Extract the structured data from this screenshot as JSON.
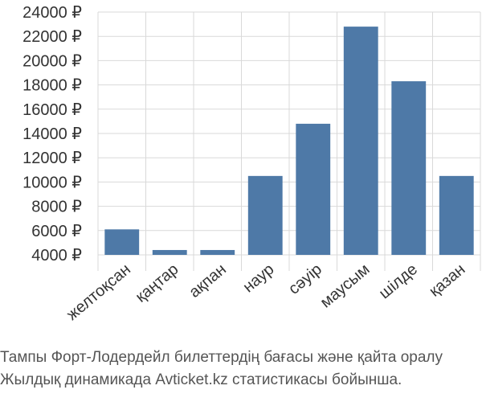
{
  "chart_data": {
    "type": "bar",
    "title": "",
    "xlabel": "",
    "ylabel": "",
    "categories": [
      "желтоқсан",
      "қаңтар",
      "ақпан",
      "наур",
      "сәуір",
      "маусым",
      "шілде",
      "қазан"
    ],
    "values": [
      6100,
      4400,
      4400,
      10500,
      14800,
      22800,
      18300,
      10500
    ],
    "ylim": [
      4000,
      24000
    ],
    "yticks": [
      4000,
      6000,
      8000,
      10000,
      12000,
      14000,
      16000,
      18000,
      20000,
      22000,
      24000
    ],
    "currency_suffix": " ₽",
    "grid": true,
    "bar_color": "#4e79a7"
  },
  "caption": {
    "line1": "Тампы Форт-Лодердейл билеттердің бағасы және қайта оралу",
    "line2": "Жылдық динамикада Avticket.kz статистикасы бойынша."
  }
}
